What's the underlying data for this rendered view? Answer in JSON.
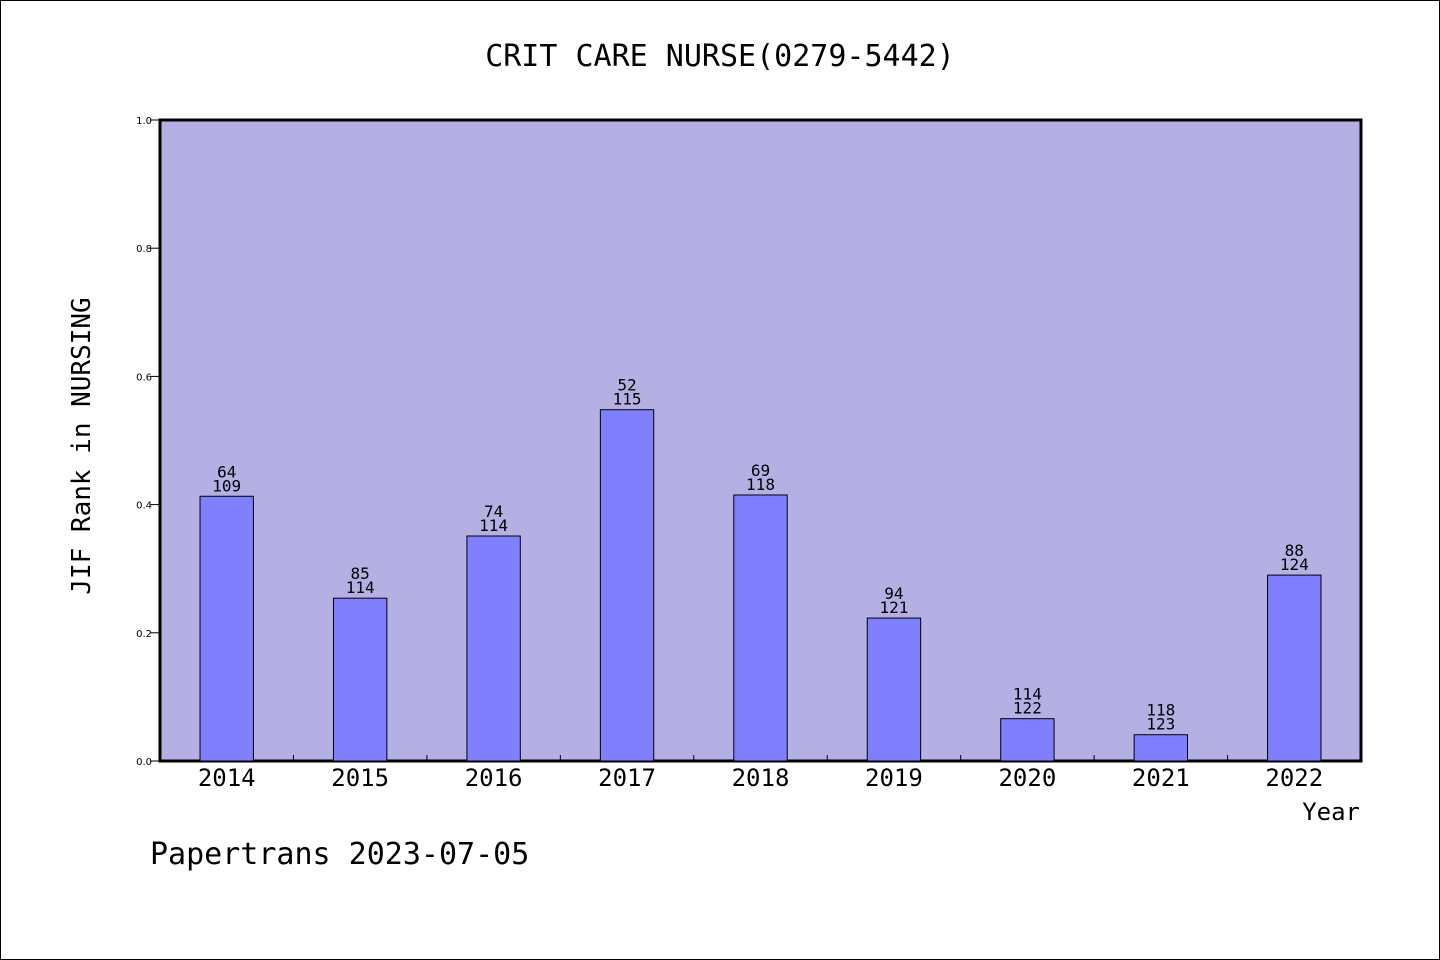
{
  "colors": {
    "plot_background": "#b5b0e3",
    "bar_fill": "#8080ff",
    "axis": "#000000"
  },
  "footer_text": "Papertrans 2023-07-05",
  "chart_data": {
    "type": "bar",
    "title": "CRIT CARE NURSE(0279-5442)",
    "xlabel": "Year",
    "ylabel": "JIF Rank in NURSING",
    "ylim": [
      0,
      1.0
    ],
    "yticks": [
      "0.0",
      "0.2",
      "0.4",
      "0.6",
      "0.8",
      "1.0"
    ],
    "grid": false,
    "categories": [
      "2014",
      "2015",
      "2016",
      "2017",
      "2018",
      "2019",
      "2020",
      "2021",
      "2022"
    ],
    "values": [
      0.413,
      0.254,
      0.351,
      0.548,
      0.415,
      0.223,
      0.066,
      0.041,
      0.29
    ],
    "rank": [
      "64",
      "85",
      "74",
      "52",
      "69",
      "94",
      "114",
      "118",
      "88"
    ],
    "total": [
      "109",
      "114",
      "114",
      "115",
      "118",
      "121",
      "122",
      "123",
      "124"
    ]
  }
}
